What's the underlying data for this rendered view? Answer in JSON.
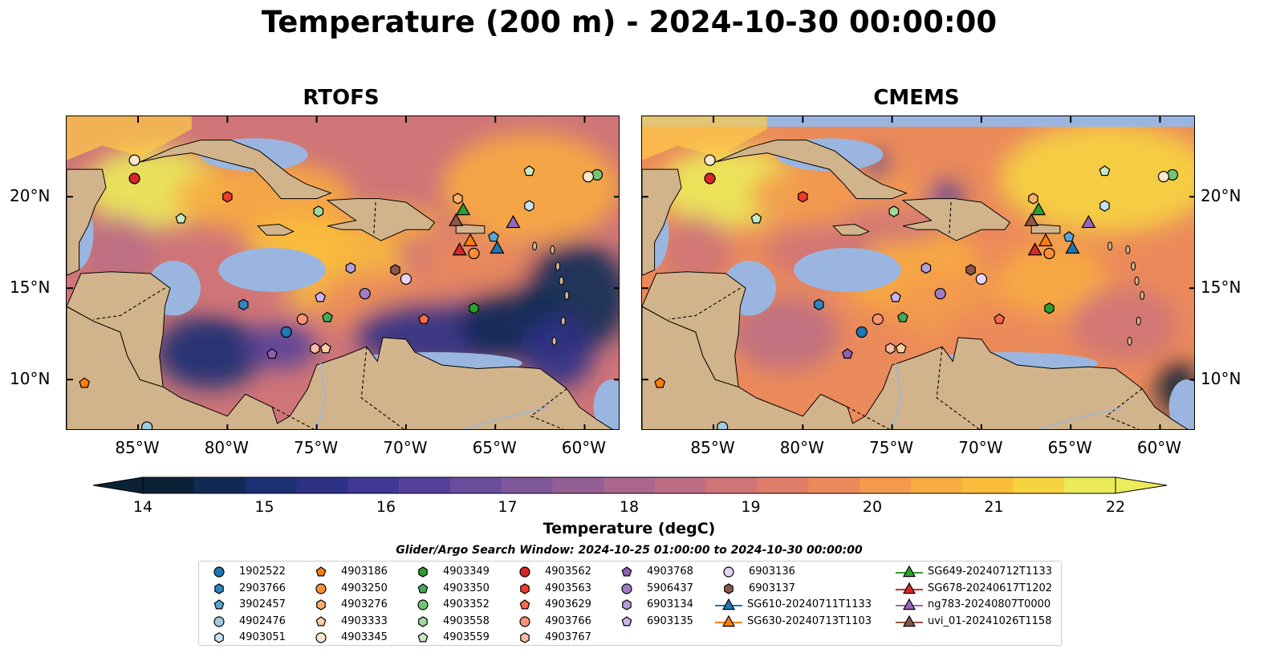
{
  "title": "Temperature (200 m) - 2024-10-30 00:00:00",
  "panels": [
    {
      "title": "RTOFS",
      "variant": "rtofs"
    },
    {
      "title": "CMEMS",
      "variant": "cmems"
    }
  ],
  "axes": {
    "lon_ticks": [
      "85°W",
      "80°W",
      "75°W",
      "70°W",
      "65°W",
      "60°W"
    ],
    "lat_ticks": [
      "20°N",
      "15°N",
      "10°N"
    ],
    "lon_range": [
      -89,
      -58
    ],
    "lat_range": [
      7.2,
      24.4
    ]
  },
  "colorbar": {
    "label": "Temperature (degC)",
    "ticks": [
      "14",
      "15",
      "16",
      "17",
      "18",
      "19",
      "20",
      "21",
      "22"
    ],
    "min": 14,
    "max": 22,
    "colors": [
      "#0b2236",
      "#0f2b54",
      "#1b2f73",
      "#2c3186",
      "#3f3793",
      "#54409a",
      "#6a4d9c",
      "#7f579a",
      "#945f95",
      "#a9678e",
      "#bd6e84",
      "#cf7578",
      "#df7d69",
      "#eb8a5b",
      "#f39a4d",
      "#f8ab41",
      "#fabd3b",
      "#f6d440",
      "#ecec5a"
    ]
  },
  "search_window": "Glider/Argo Search Window: 2024-10-25 01:00:00 to 2024-10-30 00:00:00",
  "legend": [
    {
      "label": "1902522",
      "marker": "circle",
      "color": "#1f77b4"
    },
    {
      "label": "2903766",
      "marker": "hexagon",
      "color": "#2e86c1"
    },
    {
      "label": "3902457",
      "marker": "pentagon",
      "color": "#5aa5d8"
    },
    {
      "label": "4902476",
      "marker": "circle",
      "color": "#9ecae1"
    },
    {
      "label": "4903051",
      "marker": "hexagon",
      "color": "#c6e2f5"
    },
    {
      "label": "4903186",
      "marker": "pentagon",
      "color": "#ff7f0e"
    },
    {
      "label": "4903250",
      "marker": "circle",
      "color": "#fd8d3c"
    },
    {
      "label": "4903276",
      "marker": "hexagon",
      "color": "#fdae6b"
    },
    {
      "label": "4903333",
      "marker": "pentagon",
      "color": "#fdd0a2"
    },
    {
      "label": "4903345",
      "marker": "circle",
      "color": "#fee6ce"
    },
    {
      "label": "4903349",
      "marker": "hexagon",
      "color": "#2ca02c"
    },
    {
      "label": "4903350",
      "marker": "pentagon",
      "color": "#41ab5d"
    },
    {
      "label": "4903352",
      "marker": "circle",
      "color": "#74c476"
    },
    {
      "label": "4903558",
      "marker": "hexagon",
      "color": "#a1d99b"
    },
    {
      "label": "4903559",
      "marker": "pentagon",
      "color": "#c7e9c0"
    },
    {
      "label": "4903562",
      "marker": "circle",
      "color": "#d62728"
    },
    {
      "label": "4903563",
      "marker": "hexagon",
      "color": "#ef3b2c"
    },
    {
      "label": "4903629",
      "marker": "pentagon",
      "color": "#fb6a4a"
    },
    {
      "label": "4903766",
      "marker": "circle",
      "color": "#fc9272"
    },
    {
      "label": "4903767",
      "marker": "hexagon",
      "color": "#fcbba1"
    },
    {
      "label": "4903768",
      "marker": "pentagon",
      "color": "#8e5fb0"
    },
    {
      "label": "5906437",
      "marker": "circle",
      "color": "#a07cc5"
    },
    {
      "label": "6903134",
      "marker": "hexagon",
      "color": "#b39ddb"
    },
    {
      "label": "6903135",
      "marker": "pentagon",
      "color": "#cbb4f0"
    },
    {
      "label": "6903136",
      "marker": "circle",
      "color": "#e6d5f7"
    },
    {
      "label": "6903137",
      "marker": "hexagon",
      "color": "#8c564b"
    },
    {
      "label": "SG610-20240711T1133",
      "marker": "triangle-line",
      "color": "#1f77b4"
    },
    {
      "label": "SG630-20240713T1103",
      "marker": "triangle-line",
      "color": "#ff7f0e"
    },
    {
      "label": "SG649-20240712T1133",
      "marker": "triangle-line",
      "color": "#2ca02c"
    },
    {
      "label": "SG678-20240617T1202",
      "marker": "triangle-line",
      "color": "#d62728"
    },
    {
      "label": "ng783-20240807T0000",
      "marker": "triangle-line",
      "color": "#9467bd"
    },
    {
      "label": "uvi_01-20241026T1158",
      "marker": "triangle-line",
      "color": "#8c564b"
    }
  ],
  "floats": [
    {
      "id": "1902522",
      "lon": -76.7,
      "lat": 12.6
    },
    {
      "id": "2903766",
      "lon": -79.1,
      "lat": 14.1
    },
    {
      "id": "3902457",
      "lon": -65.1,
      "lat": 17.8
    },
    {
      "id": "4902476",
      "lon": -84.5,
      "lat": 7.4
    },
    {
      "id": "4903051",
      "lon": -63.1,
      "lat": 19.5
    },
    {
      "id": "4903186",
      "lon": -88.0,
      "lat": 9.8
    },
    {
      "id": "4903250",
      "lon": -66.2,
      "lat": 16.9
    },
    {
      "id": "4903276",
      "lon": -67.1,
      "lat": 19.9
    },
    {
      "id": "4903333",
      "lon": -74.5,
      "lat": 11.7
    },
    {
      "id": "4903345",
      "lon": -85.2,
      "lat": 22.0
    },
    {
      "id": "4903349",
      "lon": -66.2,
      "lat": 13.9
    },
    {
      "id": "4903350",
      "lon": -74.4,
      "lat": 13.4
    },
    {
      "id": "4903352",
      "lon": -59.3,
      "lat": 21.2
    },
    {
      "id": "4903558",
      "lon": -74.9,
      "lat": 19.2
    },
    {
      "id": "4903559",
      "lon": -82.6,
      "lat": 18.8
    },
    {
      "id": "4903562",
      "lon": -85.2,
      "lat": 21.0
    },
    {
      "id": "4903563",
      "lon": -80.0,
      "lat": 20.0
    },
    {
      "id": "4903629",
      "lon": -69.0,
      "lat": 13.3
    },
    {
      "id": "4903766",
      "lon": -75.8,
      "lat": 13.3
    },
    {
      "id": "4903767",
      "lon": -75.1,
      "lat": 11.7
    },
    {
      "id": "4903768",
      "lon": -77.5,
      "lat": 11.4
    },
    {
      "id": "5906437",
      "lon": -72.3,
      "lat": 14.7
    },
    {
      "id": "6903134",
      "lon": -73.1,
      "lat": 16.1
    },
    {
      "id": "6903135",
      "lon": -74.8,
      "lat": 14.5
    },
    {
      "id": "6903136",
      "lon": -70.0,
      "lat": 15.5
    },
    {
      "id": "6903137",
      "lon": -70.6,
      "lat": 16.0
    },
    {
      "id": "4903345b",
      "lon": -59.8,
      "lat": 21.1
    },
    {
      "id": "4903559b",
      "lon": -63.1,
      "lat": 21.4
    }
  ],
  "gliders": [
    {
      "id": "SG610-20240711T1133",
      "lon": -64.9,
      "lat": 17.2
    },
    {
      "id": "SG630-20240713T1103",
      "lon": -66.4,
      "lat": 17.6
    },
    {
      "id": "SG649-20240712T1133",
      "lon": -66.8,
      "lat": 19.3
    },
    {
      "id": "SG678-20240617T1202",
      "lon": -67.0,
      "lat": 17.1
    },
    {
      "id": "ng783-20240807T0000",
      "lon": -64.0,
      "lat": 18.6
    },
    {
      "id": "uvi_01-20241026T1158",
      "lon": -67.2,
      "lat": 18.7
    }
  ]
}
